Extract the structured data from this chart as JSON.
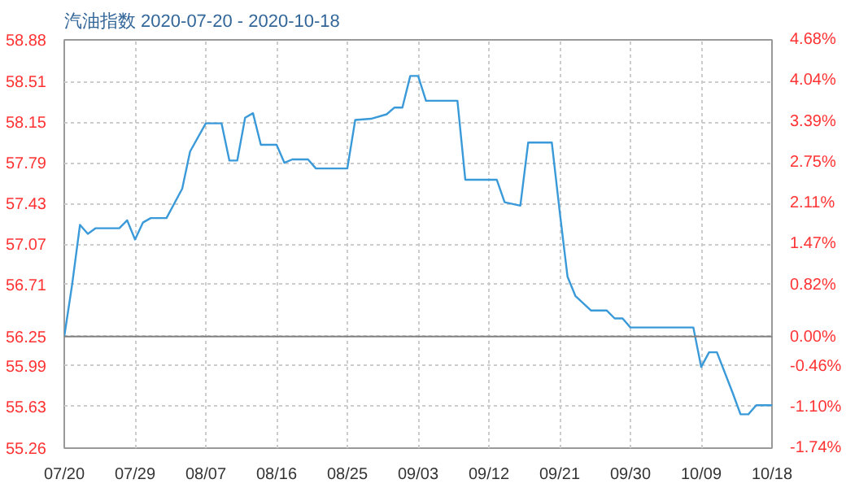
{
  "chart_data": {
    "type": "line",
    "title": "汽油指数 2020-07-20 - 2020-10-18",
    "x": [
      "2020-07-20",
      "2020-07-21",
      "2020-07-22",
      "2020-07-23",
      "2020-07-24",
      "2020-07-27",
      "2020-07-28",
      "2020-07-29",
      "2020-07-30",
      "2020-07-31",
      "2020-08-02",
      "2020-08-04",
      "2020-08-05",
      "2020-08-07",
      "2020-08-09",
      "2020-08-10",
      "2020-08-11",
      "2020-08-12",
      "2020-08-13",
      "2020-08-14",
      "2020-08-16",
      "2020-08-17",
      "2020-08-18",
      "2020-08-20",
      "2020-08-21",
      "2020-08-25",
      "2020-08-26",
      "2020-08-28",
      "2020-08-30",
      "2020-08-31",
      "2020-09-01",
      "2020-09-02",
      "2020-09-03",
      "2020-09-04",
      "2020-09-08",
      "2020-09-09",
      "2020-09-13",
      "2020-09-14",
      "2020-09-16",
      "2020-09-17",
      "2020-09-20",
      "2020-09-21",
      "2020-09-22",
      "2020-09-23",
      "2020-09-25",
      "2020-09-27",
      "2020-09-28",
      "2020-09-29",
      "2020-09-30",
      "2020-10-08",
      "2020-10-09",
      "2020-10-10",
      "2020-10-11",
      "2020-10-13",
      "2020-10-14",
      "2020-10-15",
      "2020-10-16",
      "2020-10-18"
    ],
    "series": [
      {
        "color": "#3a9ad9",
        "values": [
          56.25,
          56.71,
          57.24,
          57.16,
          57.21,
          57.21,
          57.28,
          57.11,
          57.26,
          57.3,
          57.3,
          57.56,
          57.89,
          58.14,
          58.14,
          57.81,
          57.81,
          58.19,
          58.23,
          57.95,
          57.95,
          57.79,
          57.82,
          57.82,
          57.74,
          57.74,
          58.17,
          58.18,
          58.22,
          58.28,
          58.28,
          58.56,
          58.56,
          58.34,
          58.34,
          57.64,
          57.64,
          57.44,
          57.41,
          57.97,
          57.97,
          57.36,
          56.78,
          56.61,
          56.48,
          56.48,
          56.41,
          56.41,
          56.33,
          56.33,
          55.98,
          56.11,
          56.11,
          55.75,
          55.56,
          55.56,
          55.64,
          55.64
        ]
      }
    ],
    "xlim": [
      "2020-07-20",
      "2020-10-18"
    ],
    "xticks": [
      {
        "value": "2020-07-20",
        "label": "07/20"
      },
      {
        "value": "2020-07-29",
        "label": "07/29"
      },
      {
        "value": "2020-08-07",
        "label": "08/07"
      },
      {
        "value": "2020-08-16",
        "label": "08/16"
      },
      {
        "value": "2020-08-25",
        "label": "08/25"
      },
      {
        "value": "2020-09-03",
        "label": "09/03"
      },
      {
        "value": "2020-09-12",
        "label": "09/12"
      },
      {
        "value": "2020-09-21",
        "label": "09/21"
      },
      {
        "value": "2020-09-30",
        "label": "09/30"
      },
      {
        "value": "2020-10-09",
        "label": "10/09"
      },
      {
        "value": "2020-10-18",
        "label": "10/18"
      }
    ],
    "ylim": [
      55.26,
      58.88
    ],
    "yticks": [
      {
        "value": 55.26,
        "label": "55.26"
      },
      {
        "value": 55.63,
        "label": "55.63"
      },
      {
        "value": 55.99,
        "label": "55.99"
      },
      {
        "value": 56.25,
        "label": "56.25"
      },
      {
        "value": 56.71,
        "label": "56.71"
      },
      {
        "value": 57.07,
        "label": "57.07"
      },
      {
        "value": 57.43,
        "label": "57.43"
      },
      {
        "value": 57.79,
        "label": "57.79"
      },
      {
        "value": 58.15,
        "label": "58.15"
      },
      {
        "value": 58.51,
        "label": "58.51"
      },
      {
        "value": 58.88,
        "label": "58.88"
      }
    ],
    "y2lim": [
      -1.74,
      4.68
    ],
    "y2ticks": [
      {
        "value": -1.74,
        "label": "-1.74%"
      },
      {
        "value": -1.1,
        "label": "-1.10%"
      },
      {
        "value": -0.46,
        "label": "-0.46%"
      },
      {
        "value": 0,
        "label": "0.00%"
      },
      {
        "value": 0.82,
        "label": "0.82%"
      },
      {
        "value": 1.47,
        "label": "1.47%"
      },
      {
        "value": 2.11,
        "label": "2.11%"
      },
      {
        "value": 2.75,
        "label": "2.75%"
      },
      {
        "value": 3.39,
        "label": "3.39%"
      },
      {
        "value": 4.04,
        "label": "4.04%"
      },
      {
        "value": 4.68,
        "label": "4.68%"
      }
    ],
    "ref_lines": [
      {
        "axis": "y",
        "value": 56.25,
        "color": "#808080",
        "line_style": "solid"
      }
    ],
    "grid": true,
    "marker": "none",
    "line_style": "solid"
  }
}
